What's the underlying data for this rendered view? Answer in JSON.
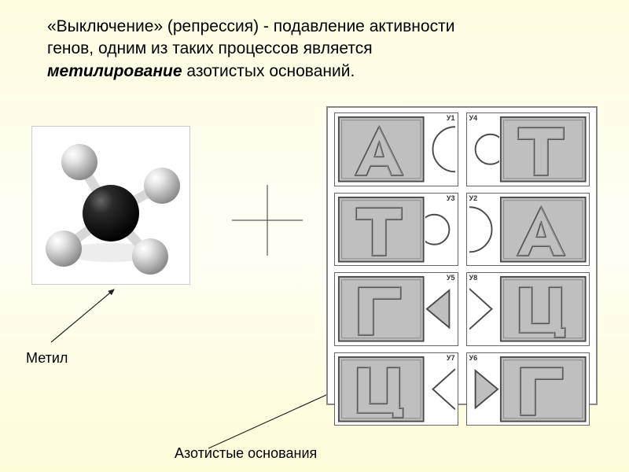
{
  "heading": {
    "line1": "«Выключение» (репрессия) -  подавление активности",
    "line2": "генов, одним из таких процессов является",
    "line3_em": "метилирование",
    "line3_rest": " азотистых оснований."
  },
  "methyl": {
    "central_color": "#1a1a1a",
    "hydrogen_color": "#d0d0d0",
    "bond_color": "#e0e0e0",
    "bg": "#ffffff"
  },
  "plus": {
    "stroke": "#333333",
    "stroke_width": 1
  },
  "labels": {
    "methyl": "Метил",
    "bases": "Азотистые основания"
  },
  "arrows": {
    "stroke": "#222222",
    "width": 1.2
  },
  "base_colors": {
    "card_fill": "#bfbfbf",
    "card_stroke": "#4a4a4a",
    "letter_fill": "#bfbfbf",
    "letter_stroke": "#555555",
    "notch_fill": "#ffffff",
    "notch_stroke": "#4a4a4a"
  },
  "grid": [
    {
      "letter": "А",
      "tag": "У1",
      "notch_side": "right",
      "notch_shape": "concave-round"
    },
    {
      "letter": "Т",
      "tag": "У4",
      "notch_side": "left",
      "notch_shape": "convex-round"
    },
    {
      "letter": "Т",
      "tag": "У3",
      "notch_side": "right",
      "notch_shape": "convex-round"
    },
    {
      "letter": "А",
      "tag": "У2",
      "notch_side": "left",
      "notch_shape": "concave-round"
    },
    {
      "letter": "Г",
      "tag": "У5",
      "notch_side": "right",
      "notch_shape": "convex-tri"
    },
    {
      "letter": "Ц",
      "tag": "У8",
      "notch_side": "left",
      "notch_shape": "concave-tri"
    },
    {
      "letter": "Ц",
      "tag": "У7",
      "notch_side": "right",
      "notch_shape": "concave-tri"
    },
    {
      "letter": "Г",
      "tag": "У6",
      "notch_side": "left",
      "notch_shape": "convex-tri"
    }
  ]
}
